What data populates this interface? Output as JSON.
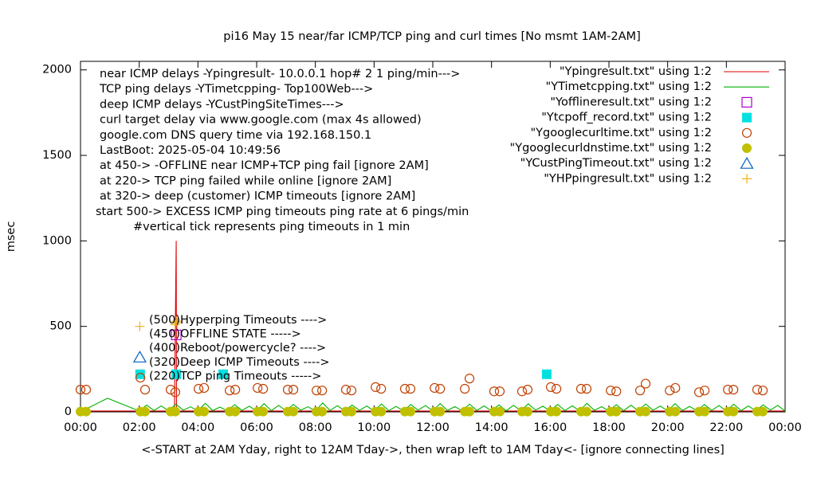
{
  "chart_data": {
    "type": "line",
    "title": "pi16 May 15  near/far ICMP/TCP ping and curl times [No msmt 1AM-2AM]",
    "y_label": "msec",
    "x_label": "<-START at 2AM Yday, right to 12AM Tday->, then wrap left to 1AM Tday<- [ignore connecting lines]",
    "xlim": [
      0,
      24
    ],
    "ylim": [
      0,
      2050
    ],
    "yticks": [
      0,
      500,
      1000,
      1500,
      2000
    ],
    "xticks": [
      {
        "value": 0,
        "label": "00:00"
      },
      {
        "value": 2,
        "label": "02:00"
      },
      {
        "value": 4,
        "label": "04:00"
      },
      {
        "value": 6,
        "label": "06:00"
      },
      {
        "value": 8,
        "label": "08:00"
      },
      {
        "value": 10,
        "label": "10:00"
      },
      {
        "value": 12,
        "label": "12:00"
      },
      {
        "value": 14,
        "label": "14:00"
      },
      {
        "value": 16,
        "label": "16:00"
      },
      {
        "value": 18,
        "label": "18:00"
      },
      {
        "value": 20,
        "label": "20:00"
      },
      {
        "value": 22,
        "label": "22:00"
      },
      {
        "value": 24,
        "label": "00:00"
      }
    ],
    "legend_position": "top-right",
    "annotations": [
      "near ICMP delays -Ypingresult- 10.0.0.1 hop# 2 1 ping/min--->",
      "TCP ping delays -YTimetcpping- Top100Web--->",
      "deep ICMP delays -YCustPingSiteTimes--->",
      "curl target delay via www.google.com (max 4s allowed)",
      "google.com DNS query time via 192.168.150.1",
      "LastBoot: 2025-05-04 10:49:56",
      "at 450-> -OFFLINE near ICMP+TCP ping fail [ignore 2AM]",
      "at 220-> TCP ping failed while online [ignore 2AM]",
      "at 320-> deep (customer) ICMP timeouts [ignore 2AM]",
      "start 500-> EXCESS ICMP ping timeouts ping rate at 6 pings/min",
      "#vertical tick represents ping timeouts in 1 min"
    ],
    "key_labels": [
      "(500)Hyperping Timeouts ---->",
      "(450)OFFLINE STATE ----->",
      "(400)Reboot/powercycle? ---->",
      "(320)Deep ICMP Timeouts ---->",
      "(220)TCP ping Timeouts ----->"
    ],
    "series": [
      {
        "name": "\"Ypingresult.txt\" using 1:2",
        "style": "line",
        "color": "#e00000",
        "x": [
          0,
          3.2,
          3.26,
          3.27,
          24
        ],
        "values": [
          5,
          5,
          1000,
          5,
          5
        ]
      },
      {
        "name": "\"YTimetcpping.txt\" using 1:2",
        "style": "line",
        "color": "#00b000",
        "x": [
          0,
          0.92,
          2,
          2.25,
          2.5,
          2.75,
          3,
          3.25,
          3.5,
          3.75,
          4,
          4.25,
          4.5,
          4.75,
          5,
          5.25,
          5.5,
          5.75,
          6,
          6.25,
          6.5,
          6.75,
          7,
          7.25,
          7.5,
          7.75,
          8,
          8.25,
          8.5,
          8.75,
          9,
          9.25,
          9.5,
          9.75,
          10,
          10.25,
          10.5,
          10.75,
          11,
          11.25,
          11.5,
          11.75,
          12,
          12.25,
          12.5,
          12.75,
          13,
          13.25,
          13.5,
          13.75,
          14,
          14.25,
          14.5,
          14.75,
          15,
          15.25,
          15.5,
          15.75,
          16,
          16.25,
          16.5,
          16.75,
          17,
          17.25,
          17.5,
          17.75,
          18,
          18.25,
          18.5,
          18.75,
          19,
          19.25,
          19.5,
          19.75,
          20,
          20.25,
          20.5,
          20.75,
          21,
          21.25,
          21.5,
          21.75,
          22,
          22.25,
          22.5,
          22.75,
          23,
          23.25,
          23.5,
          23.75,
          24
        ],
        "values": [
          0,
          80,
          5,
          40,
          8,
          35,
          6,
          45,
          10,
          30,
          5,
          50,
          8,
          28,
          6,
          42,
          9,
          33,
          5,
          48,
          7,
          38,
          6,
          44,
          10,
          30,
          5,
          52,
          8,
          36,
          6,
          40,
          9,
          34,
          5,
          46,
          7,
          32,
          6,
          43,
          10,
          37,
          5,
          49,
          8,
          31,
          6,
          45,
          9,
          35,
          5,
          41,
          7,
          38,
          6,
          47,
          10,
          33,
          5,
          44,
          8,
          36,
          6,
          50,
          9,
          30,
          5,
          42,
          7,
          39,
          6,
          46,
          10,
          34,
          5,
          48,
          8,
          32,
          6,
          43,
          9,
          37,
          5,
          45,
          7,
          35,
          6,
          41,
          10,
          38,
          5
        ]
      },
      {
        "name": "\"Yofflineresult.txt\" using 1:2",
        "style": "square-open",
        "color": "#b000d0",
        "x": [
          3.26
        ],
        "values": [
          450
        ]
      },
      {
        "name": "\"Ytcpoff_record.txt\" using 1:2",
        "style": "square-filled",
        "color": "#00e0e0",
        "x": [
          2.03,
          3.26,
          4.86,
          15.88
        ],
        "values": [
          220,
          220,
          220,
          220
        ]
      },
      {
        "name": "\"Ygooglecurltime.txt\" using 1:2",
        "style": "circle-open",
        "color": "#c04000",
        "x": [
          0,
          0.19,
          2.04,
          2.2,
          3.07,
          3.23,
          4.02,
          4.21,
          5.08,
          5.27,
          6.03,
          6.22,
          7.06,
          7.25,
          8.04,
          8.23,
          9.04,
          9.23,
          10.05,
          10.24,
          11.05,
          11.24,
          12.06,
          12.25,
          13.09,
          13.25,
          14.09,
          14.28,
          15.04,
          15.23,
          16.02,
          16.21,
          17.05,
          17.24,
          18.06,
          18.25,
          19.06,
          19.25,
          20.07,
          20.26,
          21.07,
          21.26,
          22.05,
          22.24,
          23.05,
          23.24
        ],
        "values": [
          130,
          130,
          200,
          130,
          130,
          115,
          135,
          140,
          125,
          130,
          140,
          135,
          130,
          130,
          125,
          125,
          130,
          125,
          145,
          135,
          135,
          135,
          140,
          135,
          135,
          195,
          120,
          120,
          120,
          130,
          145,
          135,
          135,
          135,
          125,
          120,
          125,
          165,
          125,
          140,
          115,
          125,
          130,
          130,
          130,
          125
        ]
      },
      {
        "name": "\"Ygooglecurldnstime.txt\" using 1:2",
        "style": "circle-filled",
        "color": "#c0c000",
        "x": [
          0,
          0.19,
          2.04,
          2.2,
          3.07,
          3.23,
          4.02,
          4.21,
          5.08,
          5.27,
          6.03,
          6.22,
          7.06,
          7.25,
          8.04,
          8.23,
          9.04,
          9.23,
          10.05,
          10.24,
          11.05,
          11.24,
          12.06,
          12.25,
          13.09,
          13.25,
          14.09,
          14.28,
          15.04,
          15.23,
          16.02,
          16.21,
          17.05,
          17.24,
          18.06,
          18.25,
          19.06,
          19.25,
          20.07,
          20.26,
          21.07,
          21.26,
          22.05,
          22.24,
          23.05,
          23.24
        ],
        "values": [
          2,
          2,
          2,
          2,
          2,
          2,
          2,
          2,
          2,
          2,
          2,
          2,
          2,
          2,
          2,
          2,
          2,
          2,
          2,
          2,
          2,
          2,
          2,
          2,
          2,
          2,
          2,
          2,
          2,
          2,
          2,
          2,
          2,
          2,
          2,
          2,
          2,
          2,
          2,
          2,
          2,
          2,
          2,
          2,
          2,
          2
        ]
      },
      {
        "name": "\"YCustPingTimeout.txt\" using 1:2",
        "style": "triangle-open",
        "color": "#0060c0",
        "x": [
          2.02
        ],
        "values": [
          320
        ]
      },
      {
        "name": "\"YHPpingresult.txt\" using 1:2",
        "style": "plus",
        "color": "#f0b020",
        "x": [
          2.02,
          3.22,
          3.26,
          3.3
        ],
        "values": [
          500,
          510,
          530,
          520
        ]
      }
    ]
  }
}
